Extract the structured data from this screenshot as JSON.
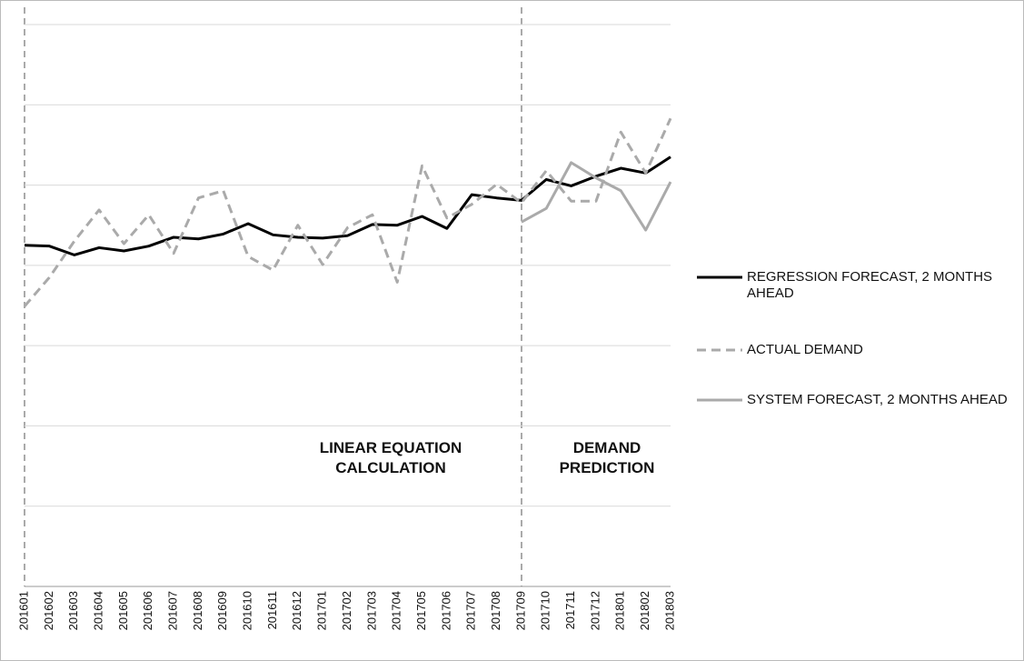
{
  "chart_data": {
    "type": "line",
    "categories": [
      "201601",
      "201602",
      "201603",
      "201604",
      "201605",
      "201606",
      "201607",
      "201608",
      "201609",
      "201610",
      "201611",
      "201612",
      "201701",
      "201702",
      "201703",
      "201704",
      "201705",
      "201706",
      "201707",
      "201708",
      "201709",
      "201710",
      "201711",
      "201712",
      "201801",
      "201802",
      "201803"
    ],
    "series": [
      {
        "name": "REGRESSION FORECAST, 2 MONTHS AHEAD",
        "color": "#000000",
        "dashed": false,
        "values": [
          4.25,
          4.24,
          4.13,
          4.22,
          4.18,
          4.24,
          4.35,
          4.33,
          4.39,
          4.52,
          4.38,
          4.35,
          4.34,
          4.37,
          4.51,
          4.5,
          4.61,
          4.46,
          4.88,
          4.84,
          4.81,
          5.07,
          4.99,
          5.11,
          5.21,
          5.15,
          5.35
        ]
      },
      {
        "name": "ACTUAL DEMAND",
        "color": "#aaaaaa",
        "dashed": true,
        "values": [
          3.49,
          3.85,
          4.3,
          4.69,
          4.27,
          4.63,
          4.15,
          4.84,
          4.93,
          4.11,
          3.94,
          4.5,
          4.01,
          4.47,
          4.63,
          3.79,
          5.24,
          4.59,
          4.76,
          5.01,
          4.78,
          5.18,
          4.8,
          4.8,
          5.66,
          5.15,
          5.83
        ]
      },
      {
        "name": "SYSTEM FORECAST, 2 MONTHS AHEAD",
        "color": "#aaaaaa",
        "dashed": false,
        "values": [
          null,
          null,
          null,
          null,
          null,
          null,
          null,
          null,
          null,
          null,
          null,
          null,
          null,
          null,
          null,
          null,
          null,
          null,
          null,
          null,
          4.54,
          4.71,
          5.28,
          5.09,
          4.93,
          4.44,
          5.04
        ]
      }
    ],
    "annotations": [
      [
        "LINEAR EQUATION",
        "CALCULATION"
      ],
      [
        "DEMAND",
        "PREDICTION"
      ]
    ],
    "ylim": [
      0,
      7
    ],
    "yticks": [
      0,
      1,
      2,
      3,
      4,
      5,
      6,
      7
    ],
    "grid": true,
    "legend": "right"
  }
}
